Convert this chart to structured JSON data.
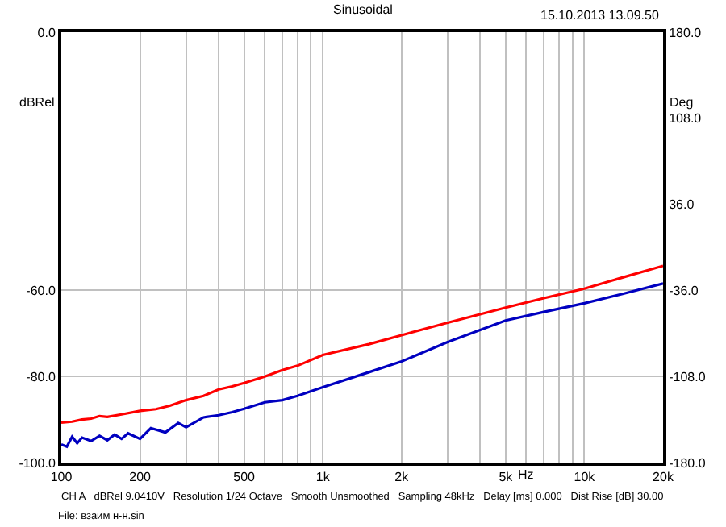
{
  "chart_data": {
    "type": "line",
    "title": "Sinusoidal",
    "xlabel": "Hz",
    "ylabel": "dBRel",
    "y2label": "Deg",
    "annotations": [
      "15.10.2013 13.09.50",
      "CH A   dBRel 9.0410V   Resolution 1/24 Octave   Smooth Unsmoothed   Sampling 48kHz   Delay [ms] 0.000   Dist Rise [dB] 30.00",
      "File: взаим н-н.sin"
    ],
    "log": "x",
    "grid": true,
    "marker": "none",
    "line_style": "solid",
    "xlim": [
      100,
      20000
    ],
    "xticks": [
      {
        "value": 100,
        "label": "100"
      },
      {
        "value": 200,
        "label": "200"
      },
      {
        "value": 300,
        "label": null
      },
      {
        "value": 400,
        "label": null
      },
      {
        "value": 500,
        "label": "500"
      },
      {
        "value": 600,
        "label": null
      },
      {
        "value": 700,
        "label": null
      },
      {
        "value": 800,
        "label": null
      },
      {
        "value": 900,
        "label": null
      },
      {
        "value": 1000,
        "label": "1k"
      },
      {
        "value": 2000,
        "label": "2k"
      },
      {
        "value": 3000,
        "label": null
      },
      {
        "value": 4000,
        "label": null
      },
      {
        "value": 5000,
        "label": "5k"
      },
      {
        "value": 6000,
        "label": null
      },
      {
        "value": 7000,
        "label": null
      },
      {
        "value": 8000,
        "label": null
      },
      {
        "value": 9000,
        "label": null
      },
      {
        "value": 10000,
        "label": "10k"
      },
      {
        "value": 20000,
        "label": "20k"
      }
    ],
    "ylim": [
      -100,
      0
    ],
    "yticks": [
      {
        "value": -100,
        "label": "-100.0"
      },
      {
        "value": -80,
        "label": "-80.0"
      },
      {
        "value": -60,
        "label": "-60.0"
      },
      {
        "value": 0,
        "label": "0.0"
      }
    ],
    "y2lim": [
      -180,
      180
    ],
    "y2ticks": [
      {
        "value": -180,
        "label": "-180.0"
      },
      {
        "value": -108,
        "label": "-108.0"
      },
      {
        "value": -36,
        "label": "-36.0"
      },
      {
        "value": 36,
        "label": "36.0"
      },
      {
        "value": 108,
        "label": "108.0"
      },
      {
        "value": 180,
        "label": "180.0"
      }
    ],
    "series": [
      {
        "color": "#ff0000",
        "x": [
          100,
          110,
          120,
          130,
          140,
          150,
          170,
          200,
          230,
          260,
          300,
          350,
          400,
          450,
          500,
          600,
          700,
          800,
          1000,
          1500,
          2000,
          3000,
          5000,
          7000,
          10000,
          14000,
          20000
        ],
        "values": [
          -90.7,
          -90.5,
          -90.0,
          -89.8,
          -89.2,
          -89.4,
          -88.8,
          -88.0,
          -87.6,
          -86.8,
          -85.5,
          -84.5,
          -83.0,
          -82.3,
          -81.5,
          -80.0,
          -78.5,
          -77.5,
          -75.0,
          -72.5,
          -70.4,
          -67.5,
          -64.0,
          -61.8,
          -59.6,
          -57.0,
          -54.3
        ]
      },
      {
        "color": "#0000c0",
        "x": [
          100,
          105,
          110,
          115,
          120,
          130,
          140,
          150,
          160,
          170,
          180,
          200,
          220,
          250,
          280,
          300,
          350,
          400,
          450,
          500,
          600,
          700,
          800,
          1000,
          1500,
          2000,
          3000,
          5000,
          7000,
          10000,
          14000,
          20000
        ],
        "values": [
          -95.8,
          -96.3,
          -94.0,
          -95.5,
          -94.2,
          -95.0,
          -93.8,
          -94.8,
          -93.5,
          -94.5,
          -93.2,
          -94.5,
          -92.0,
          -93.0,
          -90.8,
          -91.8,
          -89.5,
          -89.0,
          -88.3,
          -87.5,
          -86.0,
          -85.5,
          -84.5,
          -82.5,
          -79.0,
          -76.5,
          -72.0,
          -67.0,
          -65.0,
          -63.0,
          -60.8,
          -58.4
        ]
      }
    ]
  }
}
